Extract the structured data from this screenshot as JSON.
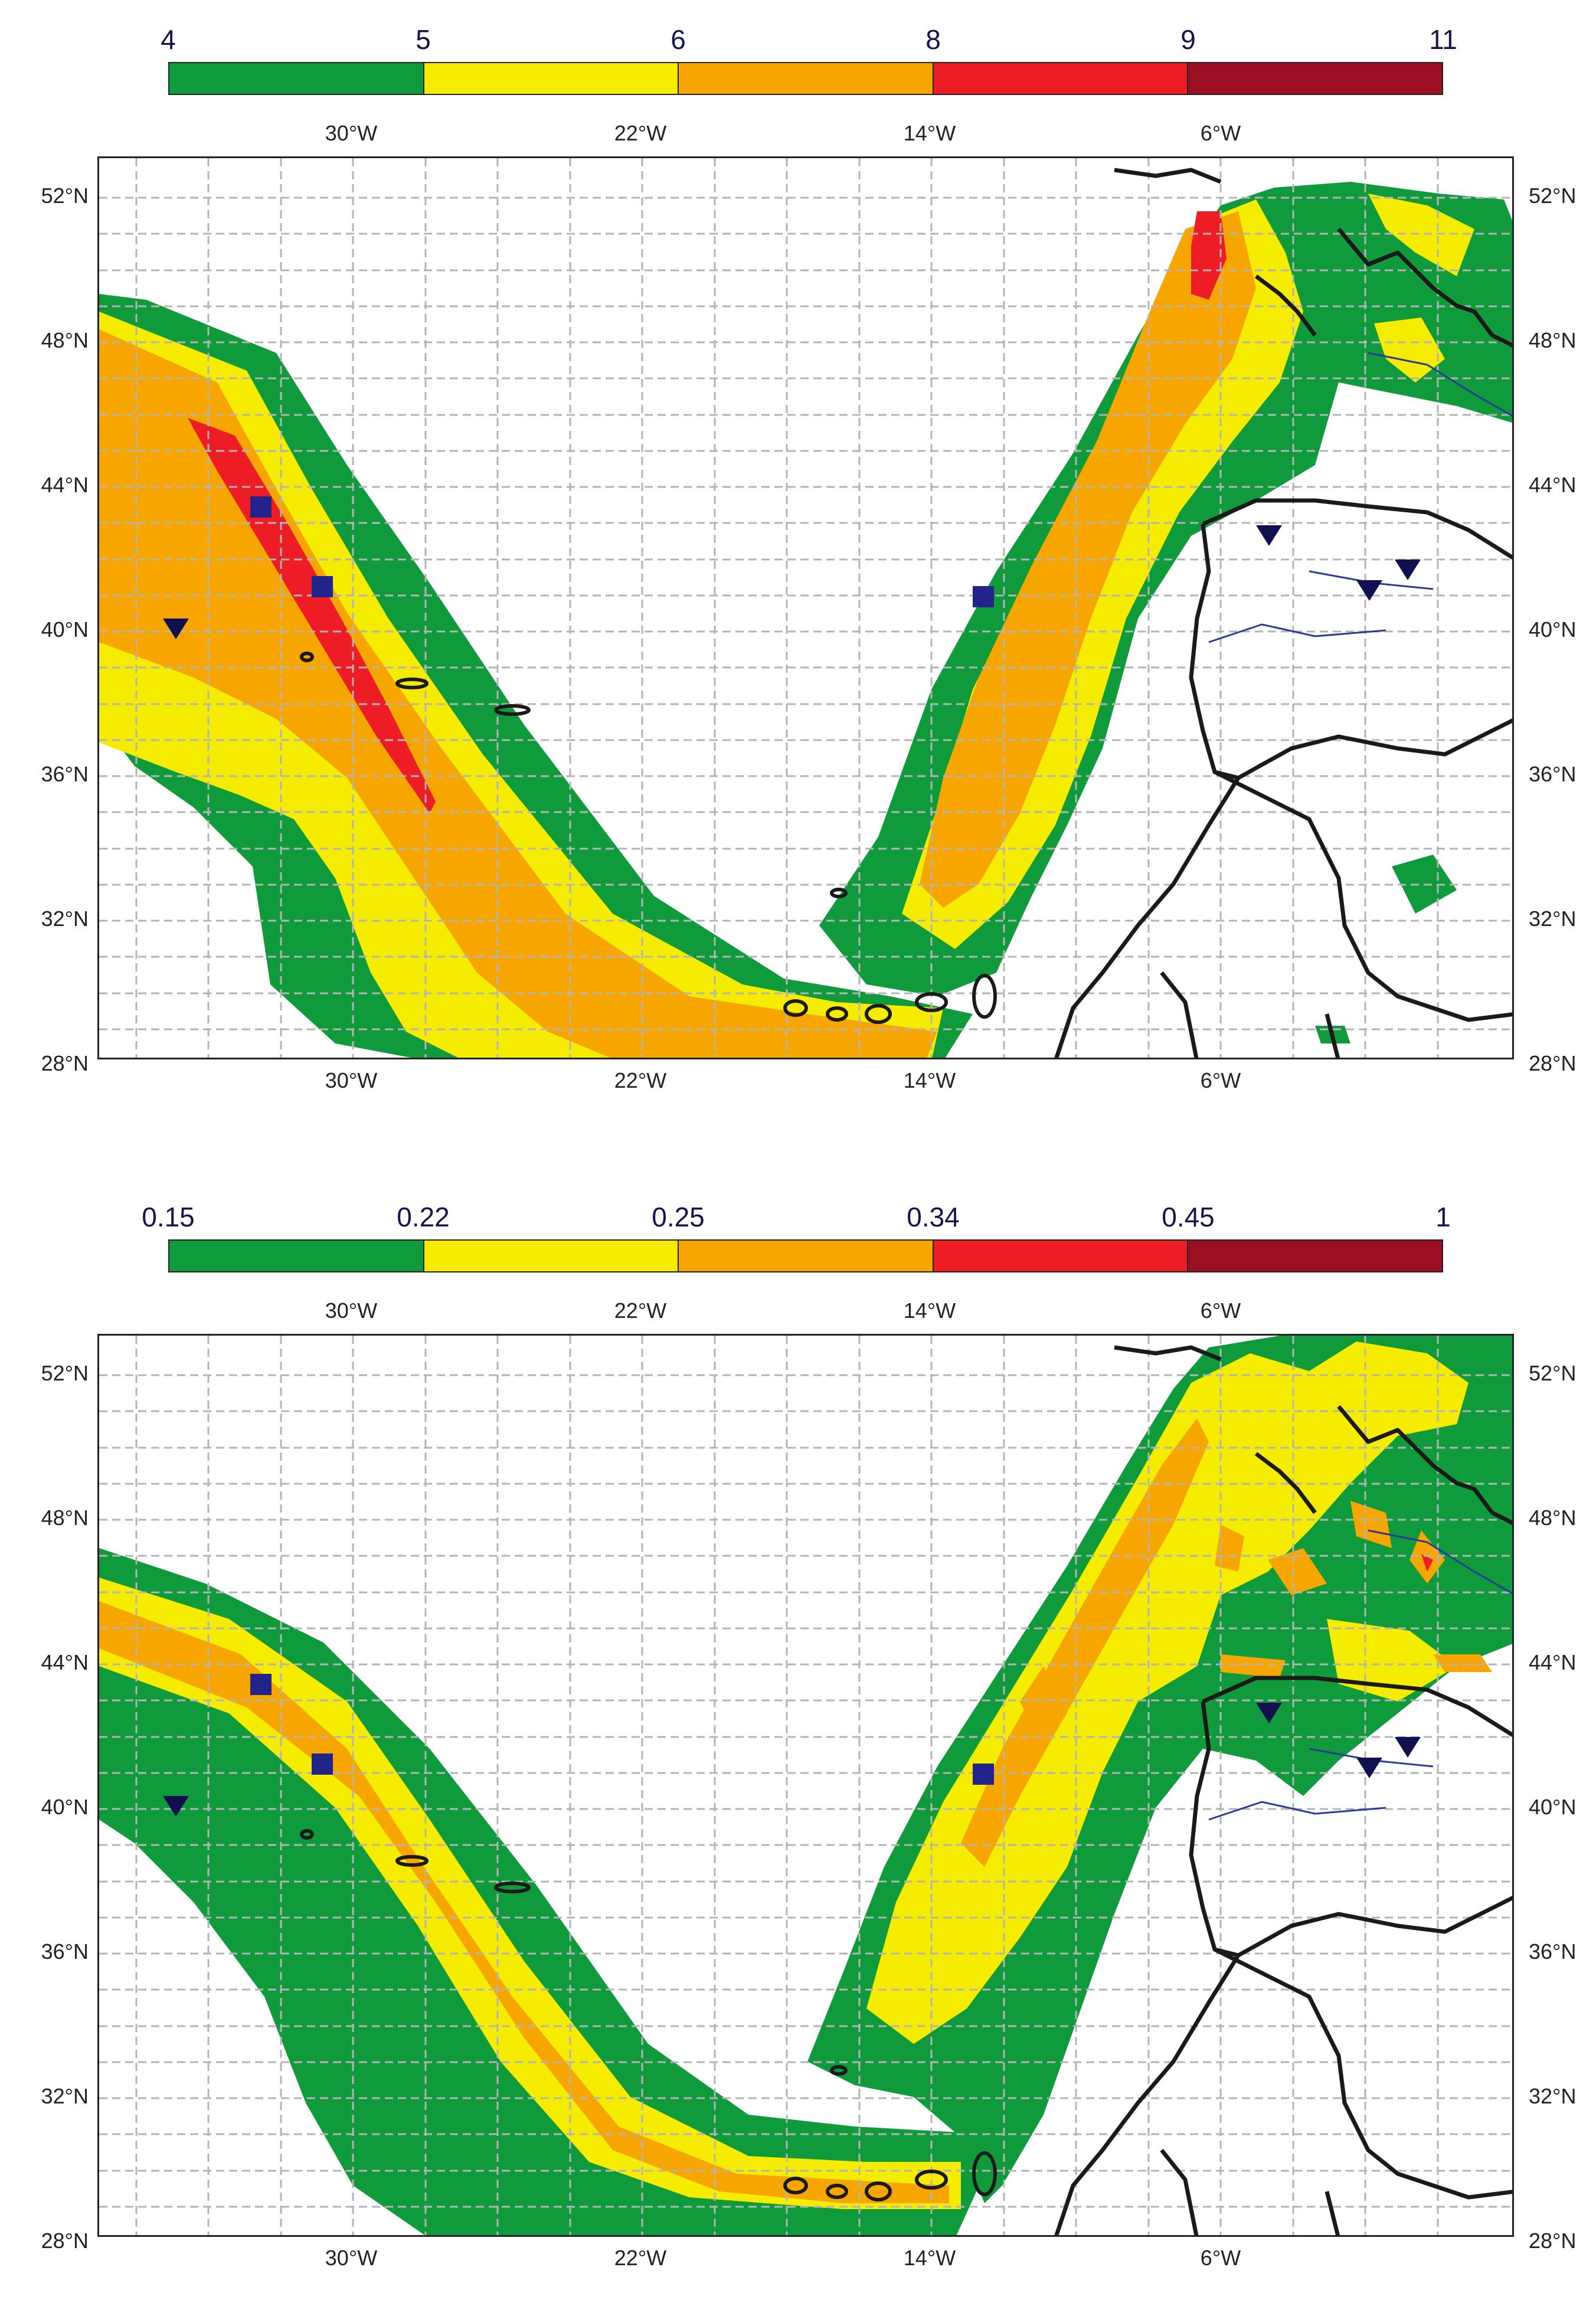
{
  "panels": [
    {
      "id": "top",
      "colorbar": {
        "labels": [
          "4",
          "5",
          "6",
          "8",
          "9",
          "11"
        ],
        "colors": [
          "#0f9b3c",
          "#f5ec00",
          "#f7a600",
          "#ee1c25",
          "#9c0e21"
        ]
      }
    },
    {
      "id": "bottom",
      "colorbar": {
        "labels": [
          "0.15",
          "0.22",
          "0.25",
          "0.34",
          "0.45",
          "1"
        ],
        "colors": [
          "#0f9b3c",
          "#f5ec00",
          "#f7a600",
          "#ee1c25",
          "#9c0e21"
        ]
      }
    }
  ],
  "axes": {
    "lon_labels": [
      "30°W",
      "22°W",
      "14°W",
      "6°W"
    ],
    "lat_labels": [
      "52°N",
      "48°N",
      "44°N",
      "40°N",
      "36°N",
      "32°N",
      "28°N"
    ]
  },
  "markers": {
    "square_color": "#23238c",
    "triangle_color": "#101050",
    "square_icon": "square-station-icon",
    "triangle_icon": "triangle-station-icon"
  },
  "map_style": {
    "coastline_color": "#1a1a1a",
    "river_color": "#2a3a9a",
    "grid_color": "#b4b4b4"
  }
}
